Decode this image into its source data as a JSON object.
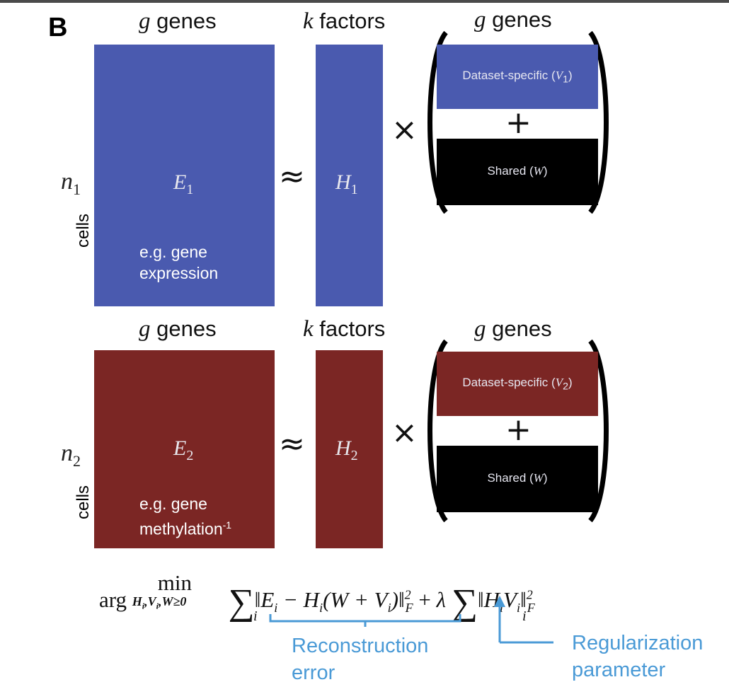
{
  "panel_letter": "B",
  "top": {
    "genes_left": {
      "var": "g",
      "word": "genes"
    },
    "factors": {
      "var": "k",
      "word": "factors"
    },
    "genes_right": {
      "var": "g",
      "word": "genes"
    },
    "row_label": {
      "var": "n",
      "sub": "1"
    },
    "cells_label": "cells",
    "E": {
      "var": "E",
      "sub": "1"
    },
    "H": {
      "var": "H",
      "sub": "1"
    },
    "note_line1": "e.g. gene",
    "note_line2": "expression",
    "specific_label": "Dataset-specific (",
    "specific_var": "V",
    "specific_sub": "1",
    "shared_label": "Shared (",
    "shared_var": "W",
    "color": "#4a5aaf"
  },
  "bottom": {
    "genes_left": {
      "var": "g",
      "word": "genes"
    },
    "factors": {
      "var": "k",
      "word": "factors"
    },
    "genes_right": {
      "var": "g",
      "word": "genes"
    },
    "row_label": {
      "var": "n",
      "sub": "2"
    },
    "cells_label": "cells",
    "E": {
      "var": "E",
      "sub": "2"
    },
    "H": {
      "var": "H",
      "sub": "2"
    },
    "note_line1": "e.g. gene",
    "note_line2": "methylation",
    "note_sup": "-1",
    "specific_label": "Dataset-specific (",
    "specific_var": "V",
    "specific_sub": "2",
    "shared_label": "Shared (",
    "shared_var": "W",
    "color": "#7b2624"
  },
  "operators": {
    "approx": "≈",
    "times": "×",
    "plus": "+"
  },
  "formula": {
    "arg": "arg",
    "min": "min",
    "min_sub": "H",
    "reconstruction_term": "‖E",
    "lambda": "λ"
  },
  "annotations": {
    "reconstruction_line1": "Reconstruction",
    "reconstruction_line2": "error",
    "regularization_line1": "Regularization",
    "regularization_line2": "parameter",
    "color": "#4a9ad6"
  }
}
